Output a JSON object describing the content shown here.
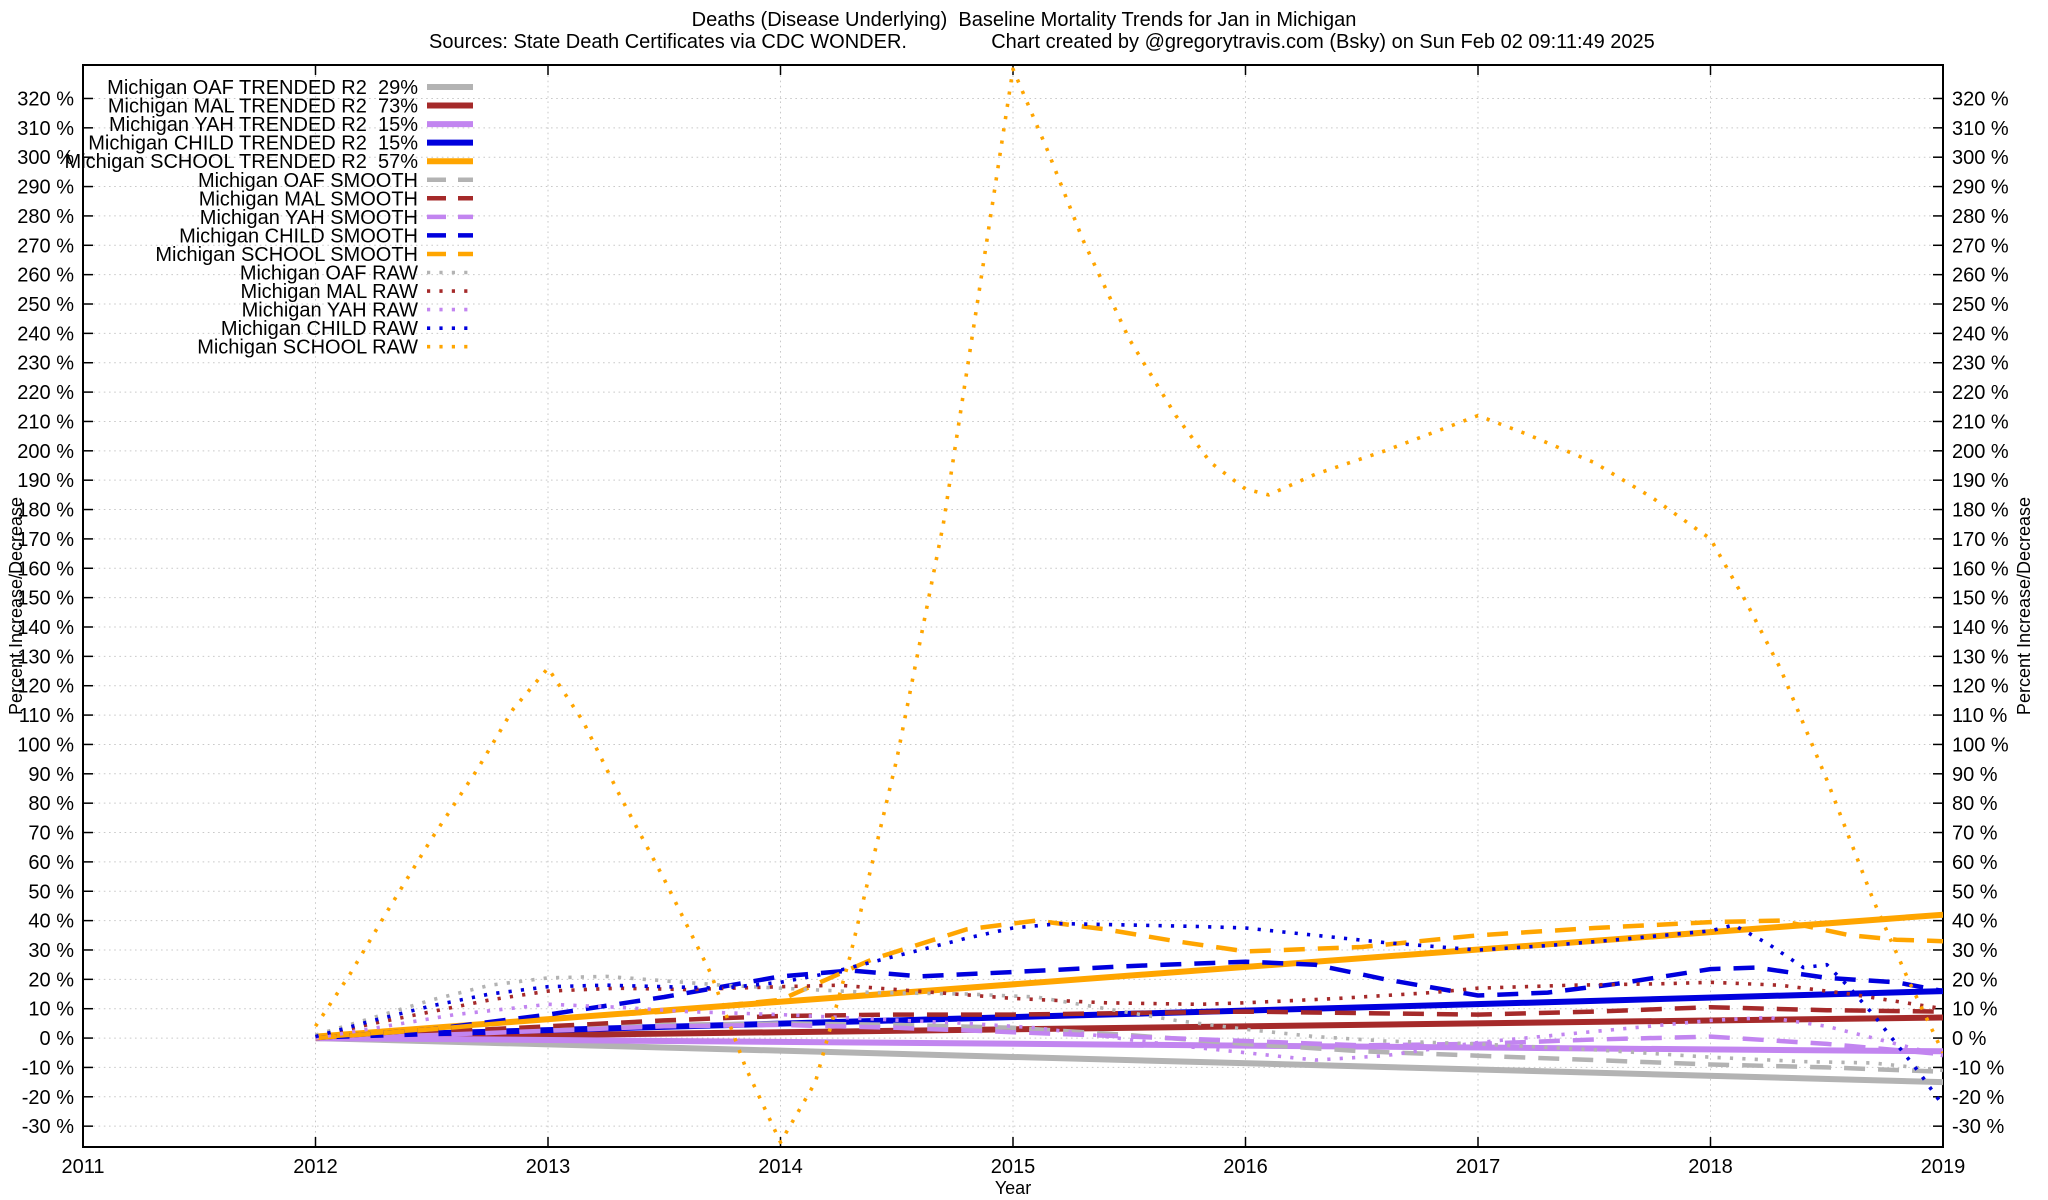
{
  "title": {
    "line1": "Deaths (Disease Underlying)  Baseline Mortality Trends for Jan in Michigan",
    "sources": "Sources: State Death Certificates via CDC WONDER.",
    "credit": "Chart created by @gregorytravis.com (Bsky) on Sun Feb 02 09:11:49 2025"
  },
  "chart_data": {
    "type": "line",
    "xlabel": "Year",
    "ylabel_left": "Percent Increase/Decrease",
    "ylabel_right": "Percent Increase/Decrease",
    "xlim": [
      2011,
      2019
    ],
    "ylim": [
      -37.1,
      331.4
    ],
    "x_ticks": [
      2011,
      2012,
      2013,
      2014,
      2015,
      2016,
      2017,
      2018,
      2019
    ],
    "y_ticks": {
      "min": -30,
      "max": 320,
      "step": 10,
      "suffix": " %"
    },
    "grid": true,
    "legend_position": "top-left",
    "background": "#ffffff",
    "series": [
      {
        "name": "Michigan OAF TRENDED",
        "label": "Michigan OAF TRENDED R2  29%",
        "r2_pct": 29,
        "group": "TRENDED",
        "style": "solid",
        "color": "#b3b3b3",
        "points": [
          [
            2012,
            0
          ],
          [
            2019,
            -15
          ]
        ]
      },
      {
        "name": "Michigan MAL TRENDED",
        "label": "Michigan MAL TRENDED R2  73%",
        "r2_pct": 73,
        "group": "TRENDED",
        "style": "solid",
        "color": "#a52a2a",
        "points": [
          [
            2012,
            0
          ],
          [
            2019,
            7
          ]
        ]
      },
      {
        "name": "Michigan YAH TRENDED",
        "label": "Michigan YAH TRENDED R2  15%",
        "r2_pct": 15,
        "group": "TRENDED",
        "style": "solid",
        "color": "#c285f0",
        "points": [
          [
            2012,
            0
          ],
          [
            2019,
            -4.5
          ]
        ]
      },
      {
        "name": "Michigan CHILD TRENDED",
        "label": "Michigan CHILD TRENDED R2  15%",
        "r2_pct": 15,
        "group": "TRENDED",
        "style": "solid",
        "color": "#0000dd",
        "points": [
          [
            2012,
            0.5
          ],
          [
            2019,
            16
          ]
        ]
      },
      {
        "name": "Michigan SCHOOL TRENDED",
        "label": "Michigan SCHOOL TRENDED R2  57%",
        "r2_pct": 57,
        "group": "TRENDED",
        "style": "solid",
        "color": "#ffa500",
        "points": [
          [
            2012,
            0.5
          ],
          [
            2019,
            42
          ]
        ]
      },
      {
        "name": "Michigan OAF SMOOTH",
        "label": "Michigan OAF SMOOTH",
        "group": "SMOOTH",
        "style": "dashed",
        "color": "#b3b3b3",
        "points": [
          [
            2012,
            0
          ],
          [
            2012.5,
            1.5
          ],
          [
            2013,
            3
          ],
          [
            2013.5,
            4.5
          ],
          [
            2014,
            5
          ],
          [
            2014.5,
            4.5
          ],
          [
            2015,
            3.5
          ],
          [
            2015.5,
            1
          ],
          [
            2016,
            -2
          ],
          [
            2016.5,
            -4.5
          ],
          [
            2017,
            -6
          ],
          [
            2017.5,
            -7.5
          ],
          [
            2018,
            -9
          ],
          [
            2018.5,
            -10
          ],
          [
            2019,
            -11.5
          ]
        ]
      },
      {
        "name": "Michigan MAL SMOOTH",
        "label": "Michigan MAL SMOOTH",
        "group": "SMOOTH",
        "style": "dashed",
        "color": "#a52a2a",
        "points": [
          [
            2012,
            0
          ],
          [
            2012.5,
            2
          ],
          [
            2013,
            4
          ],
          [
            2013.5,
            6
          ],
          [
            2014,
            7.5
          ],
          [
            2014.5,
            8
          ],
          [
            2015,
            8
          ],
          [
            2015.5,
            8.5
          ],
          [
            2016,
            9
          ],
          [
            2016.5,
            8.5
          ],
          [
            2017,
            8
          ],
          [
            2017.5,
            9
          ],
          [
            2018,
            10.5
          ],
          [
            2018.5,
            9.5
          ],
          [
            2019,
            9
          ]
        ]
      },
      {
        "name": "Michigan YAH SMOOTH",
        "label": "Michigan YAH SMOOTH",
        "group": "SMOOTH",
        "style": "dashed",
        "color": "#c285f0",
        "points": [
          [
            2012,
            0
          ],
          [
            2012.5,
            1
          ],
          [
            2013,
            2.5
          ],
          [
            2013.5,
            4
          ],
          [
            2014,
            4.5
          ],
          [
            2014.5,
            3.5
          ],
          [
            2015,
            2
          ],
          [
            2015.5,
            0.5
          ],
          [
            2016,
            -1
          ],
          [
            2016.5,
            -2.5
          ],
          [
            2017,
            -2
          ],
          [
            2017.5,
            -0.5
          ],
          [
            2018,
            0.5
          ],
          [
            2018.5,
            -2
          ],
          [
            2019,
            -5.5
          ]
        ]
      },
      {
        "name": "Michigan CHILD SMOOTH",
        "label": "Michigan CHILD SMOOTH",
        "group": "SMOOTH",
        "style": "dashed",
        "color": "#0000dd",
        "points": [
          [
            2012,
            0
          ],
          [
            2012.5,
            3
          ],
          [
            2013,
            8
          ],
          [
            2013.5,
            14
          ],
          [
            2014,
            21
          ],
          [
            2014.3,
            23
          ],
          [
            2014.6,
            21
          ],
          [
            2015,
            22.5
          ],
          [
            2015.5,
            24.5
          ],
          [
            2016,
            26
          ],
          [
            2016.3,
            25
          ],
          [
            2016.6,
            20
          ],
          [
            2017,
            14.5
          ],
          [
            2017.3,
            15.5
          ],
          [
            2017.6,
            18.5
          ],
          [
            2018,
            23.5
          ],
          [
            2018.2,
            24
          ],
          [
            2018.5,
            20.5
          ],
          [
            2018.8,
            19
          ],
          [
            2019,
            16
          ]
        ]
      },
      {
        "name": "Michigan SCHOOL SMOOTH",
        "label": "Michigan SCHOOL SMOOTH",
        "group": "SMOOTH",
        "style": "dashed",
        "color": "#ffa500",
        "points": [
          [
            2012,
            0
          ],
          [
            2012.5,
            3
          ],
          [
            2013,
            6.5
          ],
          [
            2013.5,
            9
          ],
          [
            2014,
            13
          ],
          [
            2014.4,
            27
          ],
          [
            2014.8,
            37
          ],
          [
            2015.1,
            40
          ],
          [
            2015.4,
            37
          ],
          [
            2015.7,
            33
          ],
          [
            2016,
            29.5
          ],
          [
            2016.5,
            31
          ],
          [
            2017,
            35
          ],
          [
            2017.5,
            37.5
          ],
          [
            2018,
            39.5
          ],
          [
            2018.3,
            40
          ],
          [
            2018.6,
            35
          ],
          [
            2018.8,
            33.5
          ],
          [
            2019,
            33
          ]
        ]
      },
      {
        "name": "Michigan OAF RAW",
        "label": "Michigan OAF RAW",
        "group": "RAW",
        "style": "dotted",
        "color": "#b3b3b3",
        "points": [
          [
            2012,
            1
          ],
          [
            2012.25,
            7
          ],
          [
            2012.5,
            13
          ],
          [
            2012.75,
            18
          ],
          [
            2013,
            20.5
          ],
          [
            2013.25,
            21
          ],
          [
            2013.5,
            19.5
          ],
          [
            2013.75,
            18
          ],
          [
            2014,
            17
          ],
          [
            2014.4,
            15.5
          ],
          [
            2014.8,
            15
          ],
          [
            2015.1,
            14
          ],
          [
            2015.4,
            10
          ],
          [
            2015.7,
            6
          ],
          [
            2016,
            3
          ],
          [
            2016.3,
            0.5
          ],
          [
            2016.6,
            -1
          ],
          [
            2017,
            -2
          ],
          [
            2017.5,
            -4
          ],
          [
            2018,
            -6.5
          ],
          [
            2018.4,
            -8
          ],
          [
            2018.7,
            -8.5
          ],
          [
            2019,
            -11
          ]
        ]
      },
      {
        "name": "Michigan MAL RAW",
        "label": "Michigan MAL RAW",
        "group": "RAW",
        "style": "dotted",
        "color": "#a52a2a",
        "points": [
          [
            2012,
            0.5
          ],
          [
            2012.25,
            5
          ],
          [
            2012.5,
            9
          ],
          [
            2012.75,
            13
          ],
          [
            2013,
            16
          ],
          [
            2013.3,
            17
          ],
          [
            2013.6,
            16.5
          ],
          [
            2014,
            17.5
          ],
          [
            2014.25,
            18
          ],
          [
            2014.5,
            16.5
          ],
          [
            2014.75,
            15
          ],
          [
            2015,
            13.5
          ],
          [
            2015.4,
            12
          ],
          [
            2015.8,
            11.5
          ],
          [
            2016,
            12
          ],
          [
            2016.4,
            13.5
          ],
          [
            2016.8,
            15.5
          ],
          [
            2017,
            17
          ],
          [
            2017.4,
            18
          ],
          [
            2017.8,
            18.5
          ],
          [
            2018,
            19
          ],
          [
            2018.3,
            18
          ],
          [
            2018.6,
            15
          ],
          [
            2018.8,
            12.5
          ],
          [
            2019,
            10
          ]
        ]
      },
      {
        "name": "Michigan YAH RAW",
        "label": "Michigan YAH RAW",
        "group": "RAW",
        "style": "dotted",
        "color": "#c285f0",
        "points": [
          [
            2012,
            0
          ],
          [
            2012.3,
            4
          ],
          [
            2012.6,
            8
          ],
          [
            2013,
            11.5
          ],
          [
            2013.3,
            10.5
          ],
          [
            2013.6,
            9
          ],
          [
            2014,
            8
          ],
          [
            2014.4,
            6.5
          ],
          [
            2014.8,
            5
          ],
          [
            2015.1,
            3.5
          ],
          [
            2015.4,
            0.5
          ],
          [
            2015.7,
            -2.5
          ],
          [
            2016,
            -5
          ],
          [
            2016.3,
            -7.5
          ],
          [
            2016.6,
            -6
          ],
          [
            2017,
            -1.5
          ],
          [
            2017.4,
            1.5
          ],
          [
            2017.8,
            4.5
          ],
          [
            2018,
            6
          ],
          [
            2018.25,
            7
          ],
          [
            2018.5,
            4
          ],
          [
            2018.75,
            -1
          ],
          [
            2019,
            -6
          ]
        ]
      },
      {
        "name": "Michigan CHILD RAW",
        "label": "Michigan CHILD RAW",
        "group": "RAW",
        "style": "dotted",
        "color": "#0000dd",
        "points": [
          [
            2012,
            0.5
          ],
          [
            2012.25,
            6
          ],
          [
            2012.5,
            11
          ],
          [
            2012.75,
            15
          ],
          [
            2013,
            17.5
          ],
          [
            2013.25,
            18
          ],
          [
            2013.5,
            17.5
          ],
          [
            2013.75,
            17
          ],
          [
            2014,
            19
          ],
          [
            2014.2,
            22
          ],
          [
            2014.4,
            26
          ],
          [
            2014.6,
            30
          ],
          [
            2014.8,
            34
          ],
          [
            2015,
            37.5
          ],
          [
            2015.2,
            39
          ],
          [
            2015.5,
            38.5
          ],
          [
            2015.8,
            38
          ],
          [
            2016,
            37.5
          ],
          [
            2016.3,
            35
          ],
          [
            2016.6,
            32.5
          ],
          [
            2017,
            30
          ],
          [
            2017.3,
            31.5
          ],
          [
            2017.6,
            33.5
          ],
          [
            2018,
            36.5
          ],
          [
            2018.1,
            38.5
          ],
          [
            2018.25,
            32
          ],
          [
            2018.4,
            24
          ],
          [
            2018.5,
            25
          ],
          [
            2018.6,
            17
          ],
          [
            2018.7,
            8
          ],
          [
            2018.8,
            -2
          ],
          [
            2018.9,
            -12
          ],
          [
            2019,
            -23
          ]
        ]
      },
      {
        "name": "Michigan SCHOOL RAW",
        "label": "Michigan SCHOOL RAW",
        "group": "RAW",
        "style": "dotted",
        "color": "#ffa500",
        "points": [
          [
            2012,
            4
          ],
          [
            2012.15,
            22
          ],
          [
            2012.3,
            42
          ],
          [
            2012.5,
            68
          ],
          [
            2012.7,
            92
          ],
          [
            2012.85,
            112
          ],
          [
            2013,
            126
          ],
          [
            2013.15,
            108
          ],
          [
            2013.3,
            84
          ],
          [
            2013.5,
            54
          ],
          [
            2013.7,
            22
          ],
          [
            2013.85,
            -10
          ],
          [
            2014,
            -35.5
          ],
          [
            2014.15,
            -15
          ],
          [
            2014.3,
            28
          ],
          [
            2014.5,
            95
          ],
          [
            2014.7,
            175
          ],
          [
            2014.85,
            252
          ],
          [
            2015,
            330
          ],
          [
            2015.15,
            302
          ],
          [
            2015.3,
            272
          ],
          [
            2015.5,
            238
          ],
          [
            2015.7,
            212
          ],
          [
            2015.85,
            196
          ],
          [
            2016,
            187
          ],
          [
            2016.1,
            185
          ],
          [
            2016.3,
            192
          ],
          [
            2016.6,
            200
          ],
          [
            2016.8,
            206
          ],
          [
            2017,
            212
          ],
          [
            2017.2,
            206
          ],
          [
            2017.5,
            196
          ],
          [
            2017.75,
            184
          ],
          [
            2018,
            170
          ],
          [
            2018.15,
            149
          ],
          [
            2018.3,
            126
          ],
          [
            2018.5,
            88
          ],
          [
            2018.7,
            47
          ],
          [
            2018.85,
            20
          ],
          [
            2019,
            -5
          ]
        ]
      }
    ]
  }
}
